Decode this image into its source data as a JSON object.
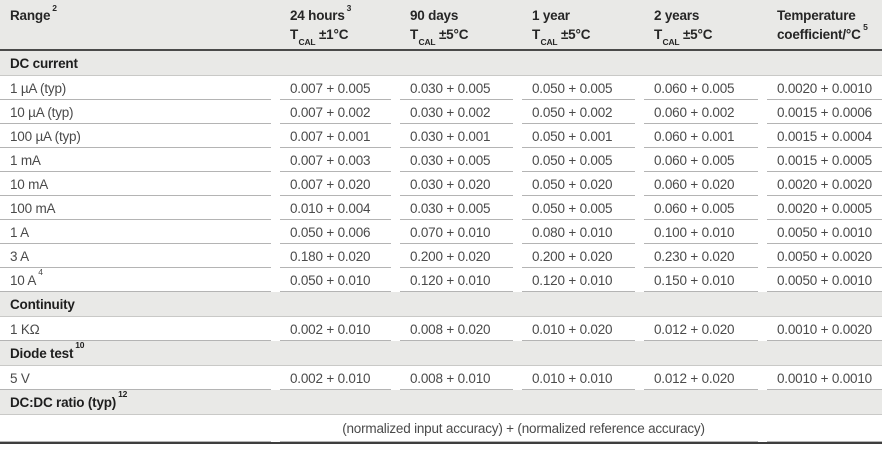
{
  "table": {
    "columns": [
      {
        "line1": "Range",
        "line1_sup": "2",
        "line2_pre": "",
        "line2_sub": "",
        "line2_post": "",
        "line2_sup": ""
      },
      {
        "line1": "24 hours",
        "line1_sup": "3",
        "line2_pre": "T",
        "line2_sub": "CAL",
        "line2_post": " ±1°C",
        "line2_sup": ""
      },
      {
        "line1": "90 days",
        "line1_sup": "",
        "line2_pre": "T",
        "line2_sub": "CAL",
        "line2_post": " ±5°C",
        "line2_sup": ""
      },
      {
        "line1": "1 year",
        "line1_sup": "",
        "line2_pre": "T",
        "line2_sub": "CAL",
        "line2_post": " ±5°C",
        "line2_sup": ""
      },
      {
        "line1": "2 years",
        "line1_sup": "",
        "line2_pre": "T",
        "line2_sub": "CAL",
        "line2_post": " ±5°C",
        "line2_sup": ""
      },
      {
        "line1": "Temperature",
        "line1_sup": "",
        "line2_pre": "coefficient/°C",
        "line2_sub": "",
        "line2_post": "",
        "line2_sup": "5"
      }
    ],
    "rows": [
      {
        "type": "section",
        "label": "DC current",
        "sup": ""
      },
      {
        "type": "data",
        "range": "1 µA (typ)",
        "range_sup": "",
        "values": [
          "0.007 + 0.005",
          "0.030 + 0.005",
          "0.050 + 0.005",
          "0.060 + 0.005",
          "0.0020 + 0.0010"
        ]
      },
      {
        "type": "data",
        "range": "10 µA (typ)",
        "range_sup": "",
        "values": [
          "0.007 + 0.002",
          "0.030 + 0.002",
          "0.050 + 0.002",
          "0.060 + 0.002",
          "0.0015 + 0.0006"
        ]
      },
      {
        "type": "data",
        "range": "100 µA (typ)",
        "range_sup": "",
        "values": [
          "0.007 + 0.001",
          "0.030 + 0.001",
          "0.050 + 0.001",
          "0.060 + 0.001",
          "0.0015 + 0.0004"
        ]
      },
      {
        "type": "data",
        "range": "1 mA",
        "range_sup": "",
        "values": [
          "0.007 + 0.003",
          "0.030 + 0.005",
          "0.050 + 0.005",
          "0.060 + 0.005",
          "0.0015 + 0.0005"
        ]
      },
      {
        "type": "data",
        "range": "10 mA",
        "range_sup": "",
        "values": [
          "0.007 + 0.020",
          "0.030 + 0.020",
          "0.050 + 0.020",
          "0.060 + 0.020",
          "0.0020 + 0.0020"
        ]
      },
      {
        "type": "data",
        "range": "100 mA",
        "range_sup": "",
        "values": [
          "0.010 + 0.004",
          "0.030 + 0.005",
          "0.050 + 0.005",
          "0.060 + 0.005",
          "0.0020 + 0.0005"
        ]
      },
      {
        "type": "data",
        "range": "1 A",
        "range_sup": "",
        "values": [
          "0.050 + 0.006",
          "0.070 + 0.010",
          "0.080 + 0.010",
          "0.100 + 0.010",
          "0.0050 + 0.0010"
        ]
      },
      {
        "type": "data",
        "range": "3 A",
        "range_sup": "",
        "values": [
          "0.180 + 0.020",
          "0.200 + 0.020",
          "0.200 + 0.020",
          "0.230 + 0.020",
          "0.0050 + 0.0020"
        ]
      },
      {
        "type": "data",
        "range": "10 A",
        "range_sup": "4",
        "values": [
          "0.050 + 0.010",
          "0.120 + 0.010",
          "0.120 + 0.010",
          "0.150 + 0.010",
          "0.0050 + 0.0010"
        ]
      },
      {
        "type": "section",
        "label": "Continuity",
        "sup": ""
      },
      {
        "type": "data",
        "range": "1 KΩ",
        "range_sup": "",
        "values": [
          "0.002 + 0.010",
          "0.008 + 0.020",
          "0.010 + 0.020",
          "0.012 + 0.020",
          "0.0010 + 0.0020"
        ]
      },
      {
        "type": "section",
        "label": "Diode test",
        "sup": "10"
      },
      {
        "type": "data",
        "range": "5 V",
        "range_sup": "",
        "values": [
          "0.002 + 0.010",
          "0.008 + 0.010",
          "0.010 + 0.010",
          "0.012 + 0.020",
          "0.0010 + 0.0010"
        ]
      },
      {
        "type": "section",
        "label": "DC:DC ratio (typ)",
        "sup": "12"
      },
      {
        "type": "note",
        "text": "(normalized input accuracy) + (normalized reference accuracy)"
      }
    ]
  }
}
